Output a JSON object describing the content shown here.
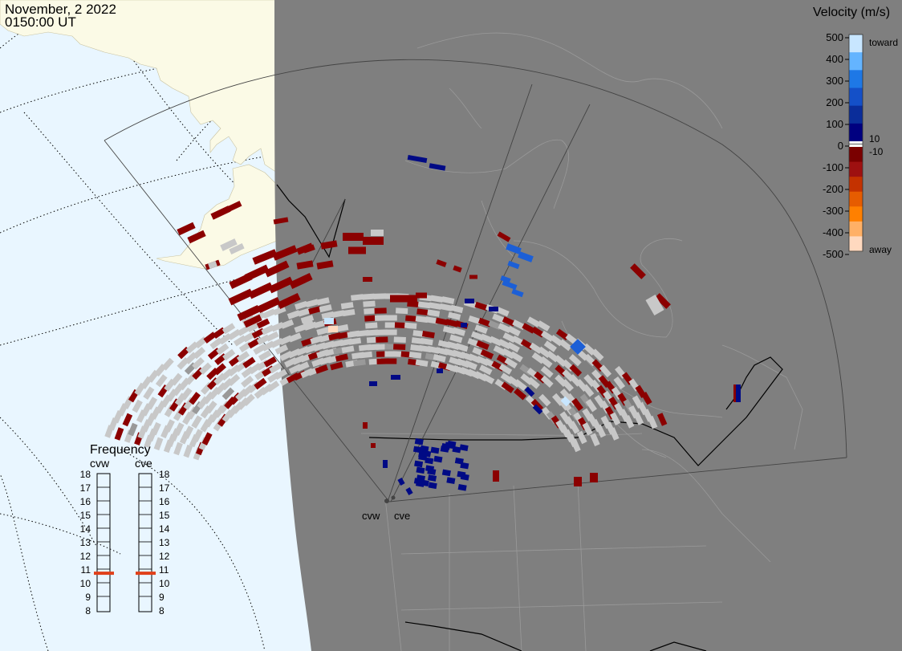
{
  "header": {
    "date": "November, 2 2022",
    "time": "0150:00 UT"
  },
  "legend": {
    "title": "Velocity (m/s)",
    "ticks": [
      "500",
      "400",
      "300",
      "200",
      "100",
      "0",
      "-100",
      "-200",
      "-300",
      "-400",
      "-500"
    ],
    "toward_label": "toward",
    "away_label": "away",
    "pos_threshold": "10",
    "neg_threshold": "-10",
    "colors": [
      "#ffd9bf",
      "#ffb066",
      "#ff8000",
      "#e65c00",
      "#c43200",
      "#9e1010",
      "#7a0000",
      "#ffffff",
      "#000080",
      "#0a2d9a",
      "#1450c8",
      "#1e78e6",
      "#64b4ff",
      "#c8e6ff"
    ]
  },
  "frequency": {
    "title": "Frequency",
    "left_radar": "cvw",
    "right_radar": "cve",
    "scale": [
      "18",
      "17",
      "16",
      "15",
      "14",
      "13",
      "12",
      "11",
      "10",
      "9",
      "8"
    ],
    "cvw_mhz": 10.7,
    "cve_mhz": 10.7
  },
  "radars": {
    "west": "cvw",
    "east": "cve"
  },
  "colors": {
    "ocean": "#e9f6ff",
    "night": "#7f7f7f",
    "land_day": "#fbfae6",
    "ground_scatter": "#c8c8c8",
    "neg_vel": "#8b0000",
    "neg_vel_bright": "#b50a0a",
    "pos_vel": "#000a85",
    "pos_vel_mid": "#1c5fd6",
    "freq_marker": "#e0401a"
  }
}
